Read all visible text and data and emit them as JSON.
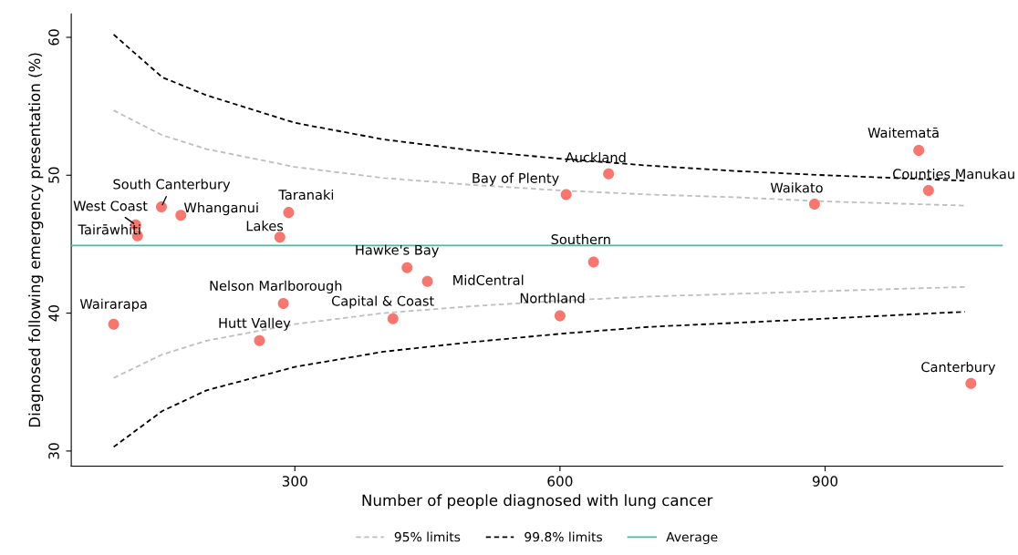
{
  "chart_data": {
    "type": "scatter",
    "xlabel": "Number of people diagnosed with lung cancer",
    "ylabel": "Diagnosed following emergency presentation (%)",
    "xlim": [
      47,
      1101
    ],
    "ylim": [
      28.9,
      61.7
    ],
    "xticks": [
      300,
      600,
      900
    ],
    "yticks": [
      30,
      40,
      50,
      60
    ],
    "grid": false,
    "legend": "bottom",
    "marker": "circle",
    "series": [
      {
        "type": "line",
        "name": "95% limits",
        "color": "#bebebe",
        "line_style": "dashed",
        "marker": "none",
        "x": [
          95,
          150,
          200,
          300,
          400,
          500,
          600,
          700,
          800,
          900,
          1058,
          null,
          95,
          150,
          200,
          300,
          400,
          500,
          600,
          700,
          800,
          900,
          1058
        ],
        "values": [
          54.7,
          52.9,
          51.9,
          50.6,
          49.8,
          49.3,
          48.9,
          48.6,
          48.4,
          48.1,
          47.8,
          null,
          35.3,
          37.0,
          38.0,
          39.2,
          40.0,
          40.5,
          40.9,
          41.2,
          41.4,
          41.6,
          41.9
        ]
      },
      {
        "type": "line",
        "name": "99.8% limits",
        "color": "#000000",
        "line_style": "dashed",
        "marker": "none",
        "x": [
          95,
          150,
          200,
          300,
          400,
          500,
          600,
          700,
          800,
          900,
          1058,
          null,
          95,
          150,
          200,
          300,
          400,
          500,
          600,
          700,
          800,
          900,
          1058
        ],
        "values": [
          60.2,
          57.1,
          55.8,
          53.8,
          52.6,
          51.8,
          51.2,
          50.7,
          50.3,
          50.0,
          49.6,
          null,
          30.3,
          32.9,
          34.4,
          36.1,
          37.2,
          37.9,
          38.5,
          39.0,
          39.3,
          39.6,
          40.1
        ]
      },
      {
        "color": "#f8766d",
        "x": [
          95,
          120,
          122,
          149,
          171,
          283,
          293,
          260,
          287,
          411,
          427,
          450,
          600,
          638,
          607,
          655,
          888,
          1006,
          1017,
          1065
        ],
        "values": [
          39.2,
          46.4,
          45.6,
          47.7,
          47.1,
          45.5,
          47.3,
          38.0,
          40.7,
          39.6,
          43.3,
          42.3,
          39.8,
          43.7,
          48.6,
          50.1,
          47.9,
          51.8,
          48.9,
          34.9
        ]
      }
    ],
    "ref_lines": [
      {
        "axis": "y",
        "value": 44.9,
        "label": "Average",
        "color": "#3fbfa0",
        "line_style": "solid"
      }
    ],
    "annotations": [
      {
        "text": "Wairarapa",
        "x": 95,
        "y": 39.2
      },
      {
        "text": "West Coast",
        "x": 120,
        "y": 46.4
      },
      {
        "text": "Tairāwhiti",
        "x": 122,
        "y": 45.6
      },
      {
        "text": "South Canterbury",
        "x": 149,
        "y": 47.7
      },
      {
        "text": "Whanganui",
        "x": 171,
        "y": 47.1
      },
      {
        "text": "Lakes",
        "x": 283,
        "y": 45.5
      },
      {
        "text": "Taranaki",
        "x": 293,
        "y": 47.3
      },
      {
        "text": "Hutt Valley",
        "x": 260,
        "y": 38.0
      },
      {
        "text": "Nelson Marlborough",
        "x": 287,
        "y": 40.7
      },
      {
        "text": "Capital & Coast",
        "x": 411,
        "y": 39.6
      },
      {
        "text": "Hawke's Bay",
        "x": 427,
        "y": 43.3
      },
      {
        "text": "MidCentral",
        "x": 450,
        "y": 42.3
      },
      {
        "text": "Northland",
        "x": 600,
        "y": 39.8
      },
      {
        "text": "Southern",
        "x": 638,
        "y": 43.7
      },
      {
        "text": "Bay of Plenty",
        "x": 607,
        "y": 48.6
      },
      {
        "text": "Auckland",
        "x": 655,
        "y": 50.1
      },
      {
        "text": "Waikato",
        "x": 888,
        "y": 47.9
      },
      {
        "text": "Waitematā",
        "x": 1006,
        "y": 51.8
      },
      {
        "text": "Counties Manukau",
        "x": 1017,
        "y": 48.9
      },
      {
        "text": "Canterbury",
        "x": 1065,
        "y": 34.9
      }
    ]
  }
}
